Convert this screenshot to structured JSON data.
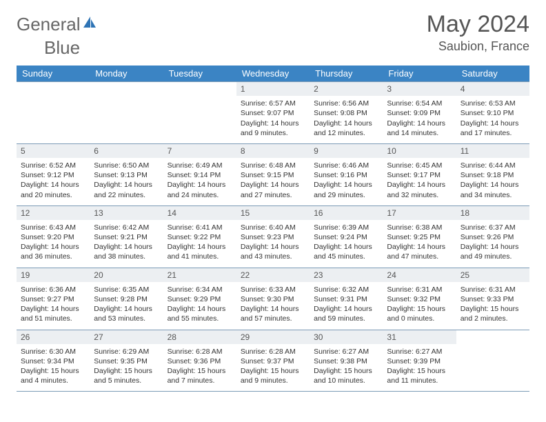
{
  "brand": {
    "part1": "General",
    "part2": "Blue"
  },
  "title": "May 2024",
  "location": "Saubion, France",
  "colors": {
    "header_bg": "#3b84c4",
    "header_text": "#ffffff",
    "daynum_bg": "#eceff2",
    "text": "#333333",
    "rule": "#7a9ab5",
    "logo_accent": "#2f74b5"
  },
  "weekdays": [
    "Sunday",
    "Monday",
    "Tuesday",
    "Wednesday",
    "Thursday",
    "Friday",
    "Saturday"
  ],
  "weeks": [
    [
      null,
      null,
      null,
      {
        "d": "1",
        "sr": "6:57 AM",
        "ss": "9:07 PM",
        "dl": "14 hours and 9 minutes."
      },
      {
        "d": "2",
        "sr": "6:56 AM",
        "ss": "9:08 PM",
        "dl": "14 hours and 12 minutes."
      },
      {
        "d": "3",
        "sr": "6:54 AM",
        "ss": "9:09 PM",
        "dl": "14 hours and 14 minutes."
      },
      {
        "d": "4",
        "sr": "6:53 AM",
        "ss": "9:10 PM",
        "dl": "14 hours and 17 minutes."
      }
    ],
    [
      {
        "d": "5",
        "sr": "6:52 AM",
        "ss": "9:12 PM",
        "dl": "14 hours and 20 minutes."
      },
      {
        "d": "6",
        "sr": "6:50 AM",
        "ss": "9:13 PM",
        "dl": "14 hours and 22 minutes."
      },
      {
        "d": "7",
        "sr": "6:49 AM",
        "ss": "9:14 PM",
        "dl": "14 hours and 24 minutes."
      },
      {
        "d": "8",
        "sr": "6:48 AM",
        "ss": "9:15 PM",
        "dl": "14 hours and 27 minutes."
      },
      {
        "d": "9",
        "sr": "6:46 AM",
        "ss": "9:16 PM",
        "dl": "14 hours and 29 minutes."
      },
      {
        "d": "10",
        "sr": "6:45 AM",
        "ss": "9:17 PM",
        "dl": "14 hours and 32 minutes."
      },
      {
        "d": "11",
        "sr": "6:44 AM",
        "ss": "9:18 PM",
        "dl": "14 hours and 34 minutes."
      }
    ],
    [
      {
        "d": "12",
        "sr": "6:43 AM",
        "ss": "9:20 PM",
        "dl": "14 hours and 36 minutes."
      },
      {
        "d": "13",
        "sr": "6:42 AM",
        "ss": "9:21 PM",
        "dl": "14 hours and 38 minutes."
      },
      {
        "d": "14",
        "sr": "6:41 AM",
        "ss": "9:22 PM",
        "dl": "14 hours and 41 minutes."
      },
      {
        "d": "15",
        "sr": "6:40 AM",
        "ss": "9:23 PM",
        "dl": "14 hours and 43 minutes."
      },
      {
        "d": "16",
        "sr": "6:39 AM",
        "ss": "9:24 PM",
        "dl": "14 hours and 45 minutes."
      },
      {
        "d": "17",
        "sr": "6:38 AM",
        "ss": "9:25 PM",
        "dl": "14 hours and 47 minutes."
      },
      {
        "d": "18",
        "sr": "6:37 AM",
        "ss": "9:26 PM",
        "dl": "14 hours and 49 minutes."
      }
    ],
    [
      {
        "d": "19",
        "sr": "6:36 AM",
        "ss": "9:27 PM",
        "dl": "14 hours and 51 minutes."
      },
      {
        "d": "20",
        "sr": "6:35 AM",
        "ss": "9:28 PM",
        "dl": "14 hours and 53 minutes."
      },
      {
        "d": "21",
        "sr": "6:34 AM",
        "ss": "9:29 PM",
        "dl": "14 hours and 55 minutes."
      },
      {
        "d": "22",
        "sr": "6:33 AM",
        "ss": "9:30 PM",
        "dl": "14 hours and 57 minutes."
      },
      {
        "d": "23",
        "sr": "6:32 AM",
        "ss": "9:31 PM",
        "dl": "14 hours and 59 minutes."
      },
      {
        "d": "24",
        "sr": "6:31 AM",
        "ss": "9:32 PM",
        "dl": "15 hours and 0 minutes."
      },
      {
        "d": "25",
        "sr": "6:31 AM",
        "ss": "9:33 PM",
        "dl": "15 hours and 2 minutes."
      }
    ],
    [
      {
        "d": "26",
        "sr": "6:30 AM",
        "ss": "9:34 PM",
        "dl": "15 hours and 4 minutes."
      },
      {
        "d": "27",
        "sr": "6:29 AM",
        "ss": "9:35 PM",
        "dl": "15 hours and 5 minutes."
      },
      {
        "d": "28",
        "sr": "6:28 AM",
        "ss": "9:36 PM",
        "dl": "15 hours and 7 minutes."
      },
      {
        "d": "29",
        "sr": "6:28 AM",
        "ss": "9:37 PM",
        "dl": "15 hours and 9 minutes."
      },
      {
        "d": "30",
        "sr": "6:27 AM",
        "ss": "9:38 PM",
        "dl": "15 hours and 10 minutes."
      },
      {
        "d": "31",
        "sr": "6:27 AM",
        "ss": "9:39 PM",
        "dl": "15 hours and 11 minutes."
      },
      null
    ]
  ],
  "labels": {
    "sunrise": "Sunrise: ",
    "sunset": "Sunset: ",
    "daylight": "Daylight: "
  }
}
